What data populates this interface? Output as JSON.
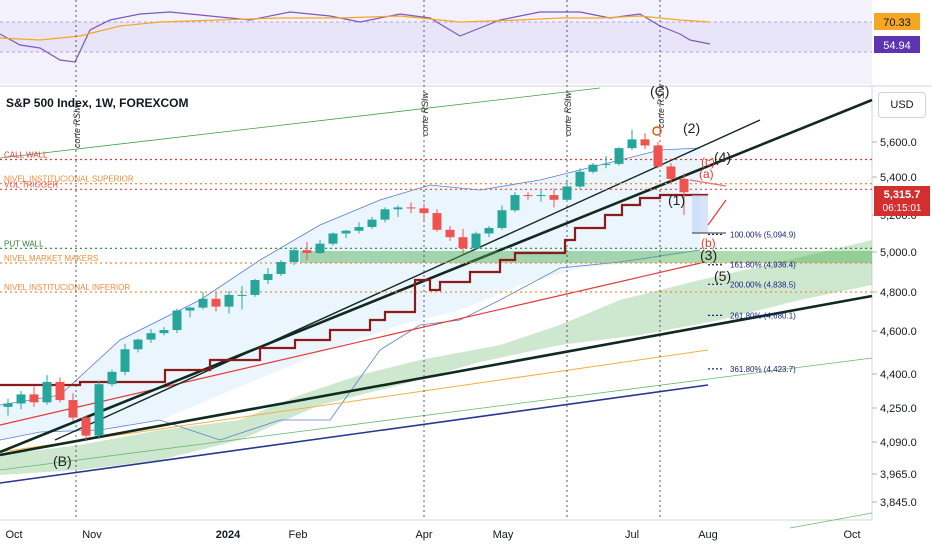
{
  "header": {
    "title": "S&P 500 Index, 1W, FOREXCOM",
    "currency": "USD"
  },
  "rsi_panel": {
    "badge_upper": "70.33",
    "badge_lower": "54.94"
  },
  "price_badge": {
    "price": "5,315.7",
    "countdown": "06:15:01"
  },
  "levels": [
    {
      "name": "CALL WALL",
      "price": 5500,
      "color": "#e53935",
      "style": "dotted"
    },
    {
      "name": "NIVEL INSTITUCIONAL SUPERIOR",
      "price": 5365,
      "color": "#ef8c3a",
      "style": "dotted"
    },
    {
      "name": "VOL TRIGGER",
      "price": 5335,
      "color": "#ef5350",
      "style": "dotted"
    },
    {
      "name": "PUT WALL",
      "price": 5020,
      "color": "#2e7d32",
      "style": "dotted"
    },
    {
      "name": "NIVEL MARKET MAKERS",
      "price": 4945,
      "color": "#ef8c3a",
      "style": "dotted"
    },
    {
      "name": "NIVEL INSTITUCIONAL INFERIOR",
      "price": 4800,
      "color": "#ef8c3a",
      "style": "dotted"
    }
  ],
  "fib_labels": [
    {
      "text": "100.00% (5,094.9)",
      "price": 5094.9
    },
    {
      "text": "161.80% (4,936.4)",
      "price": 4936.4
    },
    {
      "text": "200.00% (4,838.5)",
      "price": 4838.5
    },
    {
      "text": "261.80% (4,680.1)",
      "price": 4680.1
    },
    {
      "text": "361.80% (4,423.7)",
      "price": 4423.7
    }
  ],
  "wave_labels": [
    "(B)",
    "(C)",
    "(2)",
    "(4)",
    "(1)",
    "(3)",
    "(5)",
    "(a)",
    "(b)",
    "(c)"
  ],
  "event_labels": [
    "corte RSIw",
    "corte RSIw",
    "corte RSIw",
    "corte RSIw"
  ],
  "chart_data": {
    "type": "candlestick",
    "title": "S&P 500 Index, 1W, FOREXCOM",
    "y_ticks": [
      5600,
      5400,
      5200,
      5000,
      4800,
      4600,
      4400,
      4250,
      4090,
      3965,
      3845
    ],
    "y_tick_labels": [
      "5,600.0",
      "5,400.0",
      "5,200.0",
      "5,000.0",
      "4,800.0",
      "4,600.0",
      "4,400.0",
      "4,250.0",
      "4,090.0",
      "3,965.0",
      "3,845.0"
    ],
    "x_tick_labels": [
      "Oct",
      "Nov",
      "2024",
      "Feb",
      "Apr",
      "May",
      "Jul",
      "Aug",
      "Oct"
    ],
    "rsi_ticks": [
      "70.33",
      "54.94"
    ],
    "candles": [
      {
        "o": 4255,
        "h": 4290,
        "l": 4215,
        "c": 4270
      },
      {
        "o": 4270,
        "h": 4325,
        "l": 4245,
        "c": 4310
      },
      {
        "o": 4310,
        "h": 4345,
        "l": 4255,
        "c": 4275
      },
      {
        "o": 4275,
        "h": 4395,
        "l": 4265,
        "c": 4365
      },
      {
        "o": 4365,
        "h": 4385,
        "l": 4275,
        "c": 4285
      },
      {
        "o": 4285,
        "h": 4315,
        "l": 4190,
        "c": 4205
      },
      {
        "o": 4205,
        "h": 4215,
        "l": 4100,
        "c": 4120
      },
      {
        "o": 4120,
        "h": 4370,
        "l": 4105,
        "c": 4355
      },
      {
        "o": 4355,
        "h": 4420,
        "l": 4345,
        "c": 4410
      },
      {
        "o": 4410,
        "h": 4540,
        "l": 4395,
        "c": 4515
      },
      {
        "o": 4515,
        "h": 4565,
        "l": 4500,
        "c": 4560
      },
      {
        "o": 4560,
        "h": 4610,
        "l": 4545,
        "c": 4590
      },
      {
        "o": 4590,
        "h": 4620,
        "l": 4580,
        "c": 4605
      },
      {
        "o": 4605,
        "h": 4715,
        "l": 4590,
        "c": 4705
      },
      {
        "o": 4705,
        "h": 4725,
        "l": 4670,
        "c": 4720
      },
      {
        "o": 4720,
        "h": 4800,
        "l": 4710,
        "c": 4765
      },
      {
        "o": 4765,
        "h": 4798,
        "l": 4700,
        "c": 4725
      },
      {
        "o": 4725,
        "h": 4805,
        "l": 4690,
        "c": 4785
      },
      {
        "o": 4785,
        "h": 4830,
        "l": 4710,
        "c": 4785
      },
      {
        "o": 4785,
        "h": 4865,
        "l": 4775,
        "c": 4860
      },
      {
        "o": 4860,
        "h": 4920,
        "l": 4840,
        "c": 4890
      },
      {
        "o": 4890,
        "h": 4960,
        "l": 4880,
        "c": 4950
      },
      {
        "o": 4950,
        "h": 5025,
        "l": 4935,
        "c": 5010
      },
      {
        "o": 5010,
        "h": 5055,
        "l": 4960,
        "c": 4995
      },
      {
        "o": 4995,
        "h": 5065,
        "l": 4990,
        "c": 5045
      },
      {
        "o": 5045,
        "h": 5105,
        "l": 5035,
        "c": 5100
      },
      {
        "o": 5100,
        "h": 5120,
        "l": 5075,
        "c": 5115
      },
      {
        "o": 5115,
        "h": 5160,
        "l": 5100,
        "c": 5135
      },
      {
        "o": 5135,
        "h": 5190,
        "l": 5125,
        "c": 5175
      },
      {
        "o": 5175,
        "h": 5240,
        "l": 5160,
        "c": 5230
      },
      {
        "o": 5230,
        "h": 5250,
        "l": 5190,
        "c": 5240
      },
      {
        "o": 5240,
        "h": 5265,
        "l": 5210,
        "c": 5235
      },
      {
        "o": 5235,
        "h": 5260,
        "l": 5170,
        "c": 5210
      },
      {
        "o": 5210,
        "h": 5230,
        "l": 5110,
        "c": 5120
      },
      {
        "o": 5120,
        "h": 5140,
        "l": 5060,
        "c": 5080
      },
      {
        "o": 5080,
        "h": 5125,
        "l": 4990,
        "c": 5020
      },
      {
        "o": 5020,
        "h": 5110,
        "l": 5010,
        "c": 5100
      },
      {
        "o": 5100,
        "h": 5140,
        "l": 5080,
        "c": 5130
      },
      {
        "o": 5130,
        "h": 5250,
        "l": 5120,
        "c": 5225
      },
      {
        "o": 5225,
        "h": 5320,
        "l": 5215,
        "c": 5305
      },
      {
        "o": 5305,
        "h": 5320,
        "l": 5280,
        "c": 5300
      },
      {
        "o": 5300,
        "h": 5330,
        "l": 5270,
        "c": 5305
      },
      {
        "o": 5305,
        "h": 5340,
        "l": 5240,
        "c": 5280
      },
      {
        "o": 5280,
        "h": 5375,
        "l": 5270,
        "c": 5350
      },
      {
        "o": 5350,
        "h": 5450,
        "l": 5340,
        "c": 5430
      },
      {
        "o": 5430,
        "h": 5480,
        "l": 5420,
        "c": 5470
      },
      {
        "o": 5470,
        "h": 5520,
        "l": 5450,
        "c": 5475
      },
      {
        "o": 5475,
        "h": 5570,
        "l": 5465,
        "c": 5565
      },
      {
        "o": 5565,
        "h": 5670,
        "l": 5555,
        "c": 5615
      },
      {
        "o": 5615,
        "h": 5650,
        "l": 5560,
        "c": 5580
      },
      {
        "o": 5580,
        "h": 5600,
        "l": 5450,
        "c": 5460
      },
      {
        "o": 5460,
        "h": 5480,
        "l": 5370,
        "c": 5390
      },
      {
        "o": 5390,
        "h": 5420,
        "l": 5200,
        "c": 5320
      }
    ]
  }
}
